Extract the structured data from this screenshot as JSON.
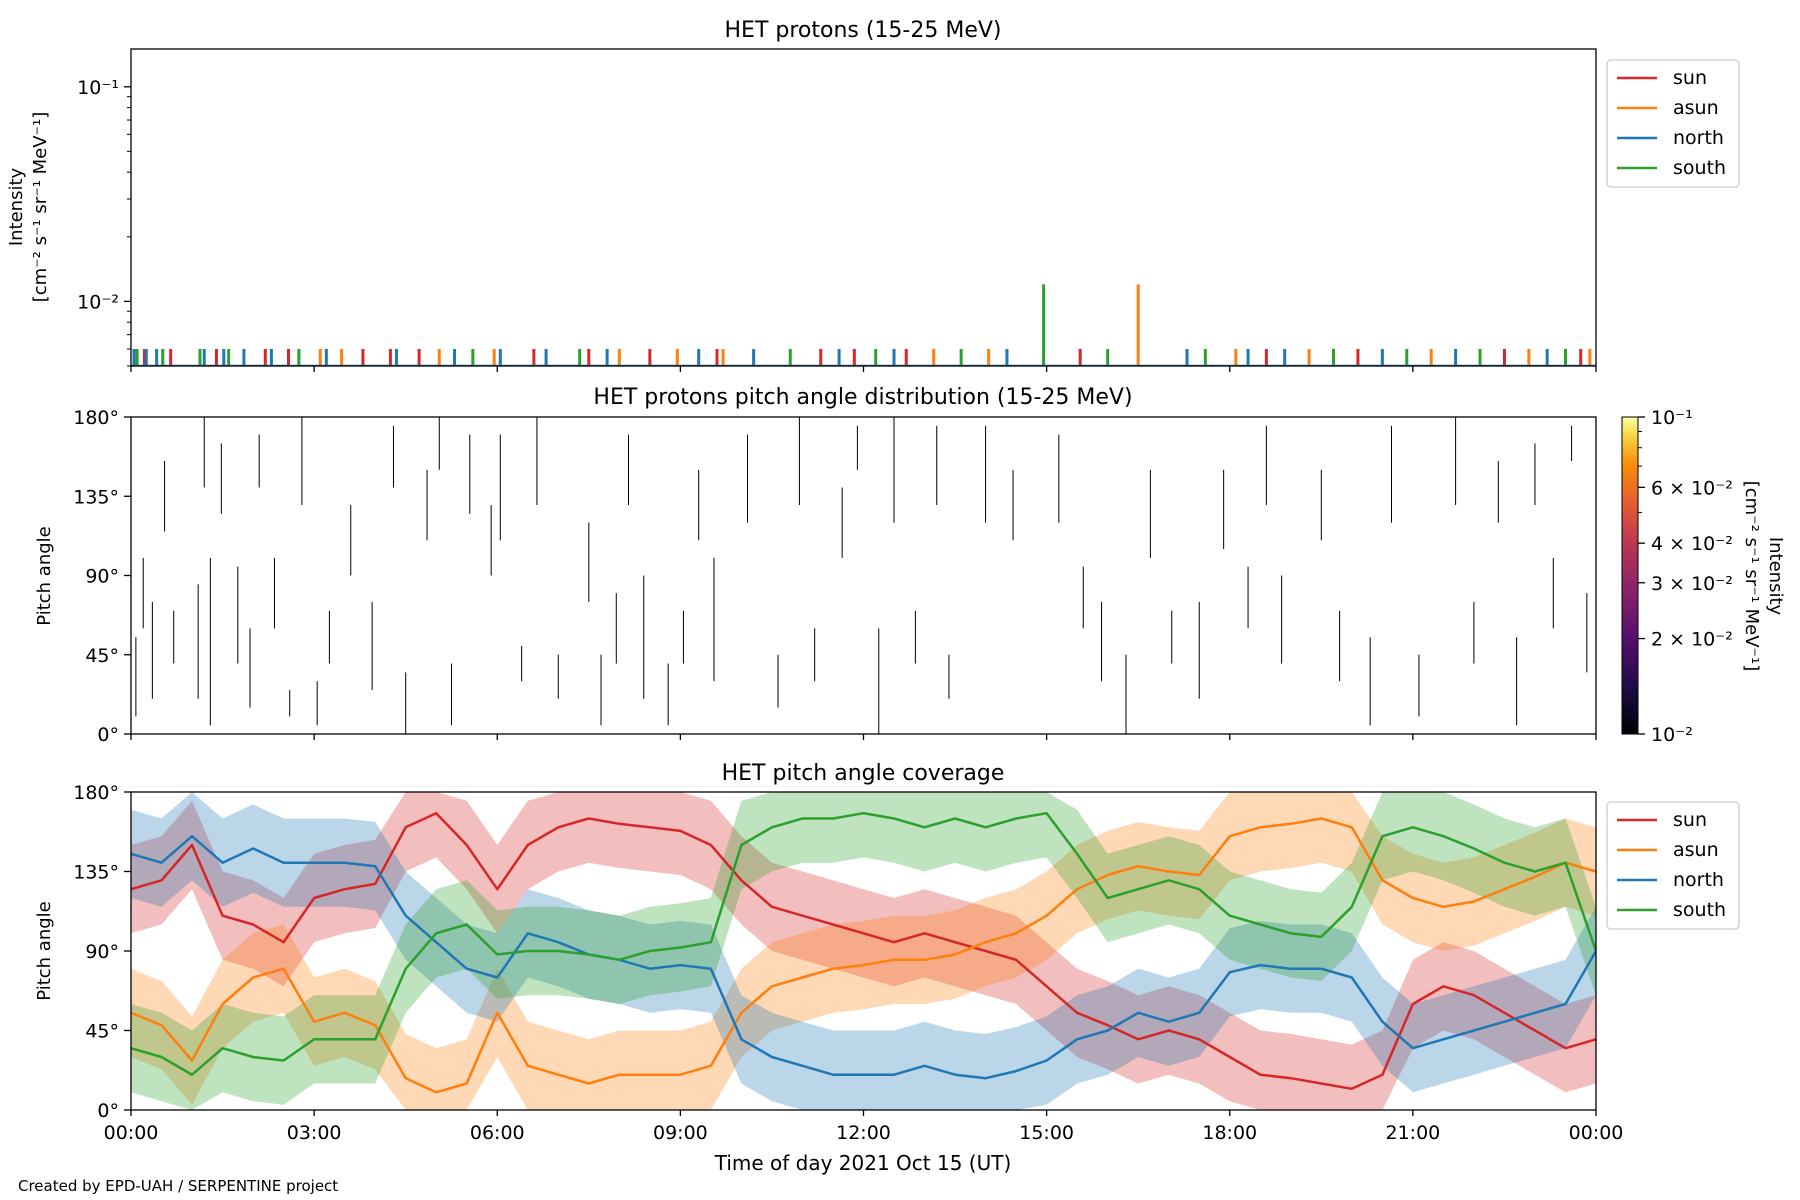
{
  "footer": "Created by EPD-UAH / SERPENTINE project",
  "xlabel": "Time of day 2021 Oct 15 (UT)",
  "xtick_labels": [
    "00:00",
    "03:00",
    "06:00",
    "09:00",
    "12:00",
    "15:00",
    "18:00",
    "21:00",
    "00:00"
  ],
  "colors": {
    "sun": "#d62728",
    "asun": "#ff7f0e",
    "north": "#1f77b4",
    "south": "#2ca02c"
  },
  "chart_data": [
    {
      "type": "line",
      "title": "HET protons (15-25 MeV)",
      "ylabel": [
        "Intensity",
        "[cm⁻² s⁻¹ sr⁻¹ MeV⁻¹]"
      ],
      "yscale": "log",
      "ylim": [
        0.005,
        0.15
      ],
      "yticks": [
        {
          "value": 0.1,
          "label": "10⁻¹"
        },
        {
          "value": 0.01,
          "label": "10⁻²"
        }
      ],
      "xlim_hours": [
        0,
        24
      ],
      "legend": {
        "placement": "upper right, outside",
        "entries": [
          "sun",
          "asun",
          "north",
          "south"
        ]
      },
      "spikes": [
        {
          "t": 0.05,
          "v": 0.006,
          "s": "north"
        },
        {
          "t": 0.1,
          "v": 0.006,
          "s": "south"
        },
        {
          "t": 0.22,
          "v": 0.006,
          "s": "sun"
        },
        {
          "t": 0.25,
          "v": 0.006,
          "s": "north"
        },
        {
          "t": 0.42,
          "v": 0.006,
          "s": "north"
        },
        {
          "t": 0.52,
          "v": 0.006,
          "s": "south"
        },
        {
          "t": 0.65,
          "v": 0.006,
          "s": "sun"
        },
        {
          "t": 1.13,
          "v": 0.006,
          "s": "south"
        },
        {
          "t": 1.2,
          "v": 0.006,
          "s": "north"
        },
        {
          "t": 1.4,
          "v": 0.006,
          "s": "sun"
        },
        {
          "t": 1.52,
          "v": 0.006,
          "s": "north"
        },
        {
          "t": 1.6,
          "v": 0.006,
          "s": "south"
        },
        {
          "t": 1.85,
          "v": 0.006,
          "s": "north"
        },
        {
          "t": 2.2,
          "v": 0.006,
          "s": "sun"
        },
        {
          "t": 2.3,
          "v": 0.006,
          "s": "north"
        },
        {
          "t": 2.58,
          "v": 0.006,
          "s": "sun"
        },
        {
          "t": 2.75,
          "v": 0.006,
          "s": "south"
        },
        {
          "t": 3.1,
          "v": 0.006,
          "s": "asun"
        },
        {
          "t": 3.2,
          "v": 0.006,
          "s": "north"
        },
        {
          "t": 3.45,
          "v": 0.006,
          "s": "asun"
        },
        {
          "t": 3.8,
          "v": 0.006,
          "s": "sun"
        },
        {
          "t": 4.25,
          "v": 0.006,
          "s": "sun"
        },
        {
          "t": 4.35,
          "v": 0.006,
          "s": "north"
        },
        {
          "t": 4.72,
          "v": 0.006,
          "s": "sun"
        },
        {
          "t": 5.05,
          "v": 0.006,
          "s": "asun"
        },
        {
          "t": 5.3,
          "v": 0.006,
          "s": "north"
        },
        {
          "t": 5.6,
          "v": 0.006,
          "s": "south"
        },
        {
          "t": 5.95,
          "v": 0.006,
          "s": "asun"
        },
        {
          "t": 6.05,
          "v": 0.006,
          "s": "north"
        },
        {
          "t": 6.6,
          "v": 0.006,
          "s": "sun"
        },
        {
          "t": 6.8,
          "v": 0.006,
          "s": "north"
        },
        {
          "t": 7.35,
          "v": 0.006,
          "s": "south"
        },
        {
          "t": 7.5,
          "v": 0.006,
          "s": "sun"
        },
        {
          "t": 7.8,
          "v": 0.006,
          "s": "north"
        },
        {
          "t": 8.0,
          "v": 0.006,
          "s": "asun"
        },
        {
          "t": 8.5,
          "v": 0.006,
          "s": "sun"
        },
        {
          "t": 8.95,
          "v": 0.006,
          "s": "asun"
        },
        {
          "t": 9.3,
          "v": 0.006,
          "s": "north"
        },
        {
          "t": 9.6,
          "v": 0.006,
          "s": "sun"
        },
        {
          "t": 9.7,
          "v": 0.006,
          "s": "asun"
        },
        {
          "t": 10.2,
          "v": 0.006,
          "s": "north"
        },
        {
          "t": 10.8,
          "v": 0.006,
          "s": "south"
        },
        {
          "t": 11.3,
          "v": 0.006,
          "s": "sun"
        },
        {
          "t": 11.6,
          "v": 0.006,
          "s": "north"
        },
        {
          "t": 11.85,
          "v": 0.006,
          "s": "sun"
        },
        {
          "t": 12.2,
          "v": 0.006,
          "s": "south"
        },
        {
          "t": 12.5,
          "v": 0.006,
          "s": "north"
        },
        {
          "t": 12.7,
          "v": 0.006,
          "s": "sun"
        },
        {
          "t": 13.15,
          "v": 0.006,
          "s": "asun"
        },
        {
          "t": 13.6,
          "v": 0.006,
          "s": "south"
        },
        {
          "t": 14.05,
          "v": 0.006,
          "s": "asun"
        },
        {
          "t": 14.35,
          "v": 0.006,
          "s": "north"
        },
        {
          "t": 14.95,
          "v": 0.012,
          "s": "south"
        },
        {
          "t": 15.55,
          "v": 0.006,
          "s": "sun"
        },
        {
          "t": 16.0,
          "v": 0.006,
          "s": "south"
        },
        {
          "t": 16.5,
          "v": 0.012,
          "s": "asun"
        },
        {
          "t": 17.3,
          "v": 0.006,
          "s": "north"
        },
        {
          "t": 17.6,
          "v": 0.006,
          "s": "south"
        },
        {
          "t": 18.1,
          "v": 0.006,
          "s": "asun"
        },
        {
          "t": 18.3,
          "v": 0.006,
          "s": "north"
        },
        {
          "t": 18.6,
          "v": 0.006,
          "s": "sun"
        },
        {
          "t": 18.9,
          "v": 0.006,
          "s": "north"
        },
        {
          "t": 19.3,
          "v": 0.006,
          "s": "asun"
        },
        {
          "t": 19.7,
          "v": 0.006,
          "s": "south"
        },
        {
          "t": 20.1,
          "v": 0.006,
          "s": "sun"
        },
        {
          "t": 20.5,
          "v": 0.006,
          "s": "north"
        },
        {
          "t": 20.9,
          "v": 0.006,
          "s": "south"
        },
        {
          "t": 21.3,
          "v": 0.006,
          "s": "asun"
        },
        {
          "t": 21.7,
          "v": 0.006,
          "s": "north"
        },
        {
          "t": 22.1,
          "v": 0.006,
          "s": "south"
        },
        {
          "t": 22.5,
          "v": 0.006,
          "s": "sun"
        },
        {
          "t": 22.9,
          "v": 0.006,
          "s": "asun"
        },
        {
          "t": 23.2,
          "v": 0.006,
          "s": "north"
        },
        {
          "t": 23.5,
          "v": 0.006,
          "s": "south"
        },
        {
          "t": 23.75,
          "v": 0.006,
          "s": "sun"
        },
        {
          "t": 23.9,
          "v": 0.006,
          "s": "asun"
        }
      ]
    },
    {
      "type": "heatmap",
      "title": "HET protons pitch angle distribution (15-25 MeV)",
      "ylabel": "Pitch angle",
      "yticks": [
        "0°",
        "45°",
        "90°",
        "135°",
        "180°"
      ],
      "ylim": [
        0,
        180
      ],
      "xlim_hours": [
        0,
        24
      ],
      "colorbar": {
        "label": "Intensity [cm⁻² s⁻¹ sr⁻¹ MeV⁻¹]",
        "scale": "log",
        "range": [
          0.01,
          0.1
        ],
        "colormap": "inferno",
        "ticks": [
          {
            "value": 0.1,
            "label": "10⁻¹"
          },
          {
            "value": 0.06,
            "label": "6 × 10⁻²"
          },
          {
            "value": 0.04,
            "label": "4 × 10⁻²"
          },
          {
            "value": 0.03,
            "label": "3 × 10⁻²"
          },
          {
            "value": 0.02,
            "label": "2 × 10⁻²"
          },
          {
            "value": 0.01,
            "label": "10⁻²"
          }
        ]
      },
      "segments": [
        [
          0.08,
          10,
          55
        ],
        [
          0.2,
          60,
          100
        ],
        [
          0.35,
          20,
          75
        ],
        [
          0.55,
          155,
          115
        ],
        [
          0.7,
          40,
          70
        ],
        [
          1.1,
          20,
          85
        ],
        [
          1.2,
          180,
          140
        ],
        [
          1.3,
          5,
          100
        ],
        [
          1.48,
          165,
          125
        ],
        [
          1.75,
          40,
          95
        ],
        [
          1.95,
          15,
          60
        ],
        [
          2.1,
          140,
          170
        ],
        [
          2.35,
          60,
          100
        ],
        [
          2.6,
          10,
          25
        ],
        [
          2.8,
          180,
          130
        ],
        [
          3.05,
          5,
          30
        ],
        [
          3.25,
          40,
          70
        ],
        [
          3.6,
          90,
          130
        ],
        [
          3.95,
          25,
          75
        ],
        [
          4.3,
          175,
          140
        ],
        [
          4.5,
          0,
          35
        ],
        [
          4.85,
          110,
          150
        ],
        [
          5.05,
          180,
          150
        ],
        [
          5.25,
          5,
          40
        ],
        [
          5.55,
          170,
          125
        ],
        [
          5.9,
          130,
          90
        ],
        [
          6.05,
          170,
          110
        ],
        [
          6.4,
          50,
          30
        ],
        [
          6.65,
          180,
          130
        ],
        [
          7.0,
          45,
          20
        ],
        [
          7.5,
          120,
          75
        ],
        [
          7.7,
          5,
          45
        ],
        [
          7.95,
          40,
          80
        ],
        [
          8.15,
          130,
          170
        ],
        [
          8.4,
          20,
          90
        ],
        [
          8.8,
          40,
          5
        ],
        [
          9.05,
          70,
          40
        ],
        [
          9.3,
          150,
          110
        ],
        [
          9.55,
          30,
          100
        ],
        [
          10.1,
          170,
          120
        ],
        [
          10.6,
          15,
          45
        ],
        [
          10.95,
          180,
          130
        ],
        [
          11.2,
          30,
          60
        ],
        [
          11.65,
          100,
          140
        ],
        [
          11.9,
          175,
          150
        ],
        [
          12.25,
          0,
          60
        ],
        [
          12.5,
          180,
          120
        ],
        [
          12.85,
          70,
          40
        ],
        [
          13.2,
          130,
          175
        ],
        [
          13.4,
          45,
          20
        ],
        [
          14.0,
          175,
          120
        ],
        [
          14.45,
          110,
          150
        ],
        [
          15.2,
          120,
          170
        ],
        [
          15.6,
          60,
          95
        ],
        [
          15.9,
          30,
          75
        ],
        [
          16.3,
          0,
          45
        ],
        [
          16.7,
          150,
          100
        ],
        [
          17.05,
          40,
          70
        ],
        [
          17.5,
          20,
          75
        ],
        [
          17.9,
          105,
          150
        ],
        [
          18.3,
          95,
          60
        ],
        [
          18.6,
          175,
          130
        ],
        [
          18.85,
          90,
          40
        ],
        [
          19.5,
          150,
          110
        ],
        [
          19.8,
          70,
          30
        ],
        [
          20.3,
          5,
          55
        ],
        [
          20.65,
          175,
          120
        ],
        [
          21.1,
          45,
          10
        ],
        [
          21.7,
          180,
          130
        ],
        [
          22.0,
          75,
          40
        ],
        [
          22.4,
          120,
          155
        ],
        [
          22.7,
          5,
          55
        ],
        [
          23.0,
          165,
          130
        ],
        [
          23.3,
          100,
          60
        ],
        [
          23.6,
          155,
          175
        ],
        [
          23.85,
          35,
          80
        ]
      ]
    },
    {
      "type": "area",
      "title": "HET pitch angle coverage",
      "ylabel": "Pitch angle",
      "yticks": [
        "0°",
        "45°",
        "90°",
        "135°",
        "180°"
      ],
      "ylim": [
        0,
        180
      ],
      "xlim_hours": [
        0,
        24
      ],
      "band_halfwidth_deg": 25,
      "legend": {
        "placement": "upper right, outside",
        "entries": [
          "sun",
          "asun",
          "north",
          "south"
        ]
      },
      "x_hours": [
        0,
        0.5,
        1,
        1.5,
        2,
        2.5,
        3,
        3.5,
        4,
        4.5,
        5,
        5.5,
        6,
        6.5,
        7,
        7.5,
        8,
        8.5,
        9,
        9.5,
        10,
        10.5,
        11,
        11.5,
        12,
        12.5,
        13,
        13.5,
        14,
        14.5,
        15,
        15.5,
        16,
        16.5,
        17,
        17.5,
        18,
        18.5,
        19,
        19.5,
        20,
        20.5,
        21,
        21.5,
        22,
        22.5,
        23,
        23.5,
        24
      ],
      "series": [
        {
          "name": "sun",
          "values": [
            125,
            130,
            150,
            110,
            105,
            95,
            120,
            125,
            128,
            160,
            168,
            150,
            125,
            150,
            160,
            165,
            162,
            160,
            158,
            150,
            130,
            115,
            110,
            105,
            100,
            95,
            100,
            95,
            90,
            85,
            70,
            55,
            48,
            40,
            45,
            40,
            30,
            20,
            18,
            15,
            12,
            20,
            60,
            70,
            65,
            55,
            45,
            35,
            40
          ]
        },
        {
          "name": "asun",
          "values": [
            55,
            48,
            28,
            60,
            75,
            80,
            50,
            55,
            48,
            18,
            10,
            15,
            55,
            25,
            20,
            15,
            20,
            20,
            20,
            25,
            55,
            70,
            75,
            80,
            82,
            85,
            85,
            88,
            95,
            100,
            110,
            125,
            133,
            138,
            135,
            133,
            155,
            160,
            162,
            165,
            160,
            130,
            120,
            115,
            118,
            125,
            132,
            140,
            135
          ]
        },
        {
          "name": "north",
          "values": [
            145,
            140,
            155,
            140,
            148,
            140,
            140,
            140,
            138,
            110,
            95,
            80,
            75,
            100,
            95,
            88,
            85,
            80,
            82,
            80,
            40,
            30,
            25,
            20,
            20,
            20,
            25,
            20,
            18,
            22,
            28,
            40,
            45,
            55,
            50,
            55,
            78,
            82,
            80,
            80,
            75,
            50,
            35,
            40,
            45,
            50,
            55,
            60,
            90
          ]
        },
        {
          "name": "south",
          "values": [
            35,
            30,
            20,
            35,
            30,
            28,
            40,
            40,
            40,
            80,
            100,
            105,
            88,
            90,
            90,
            88,
            85,
            90,
            92,
            95,
            150,
            160,
            165,
            165,
            168,
            165,
            160,
            165,
            160,
            165,
            168,
            145,
            120,
            125,
            130,
            125,
            110,
            105,
            100,
            98,
            115,
            155,
            160,
            155,
            148,
            140,
            135,
            140,
            90
          ]
        }
      ]
    }
  ]
}
